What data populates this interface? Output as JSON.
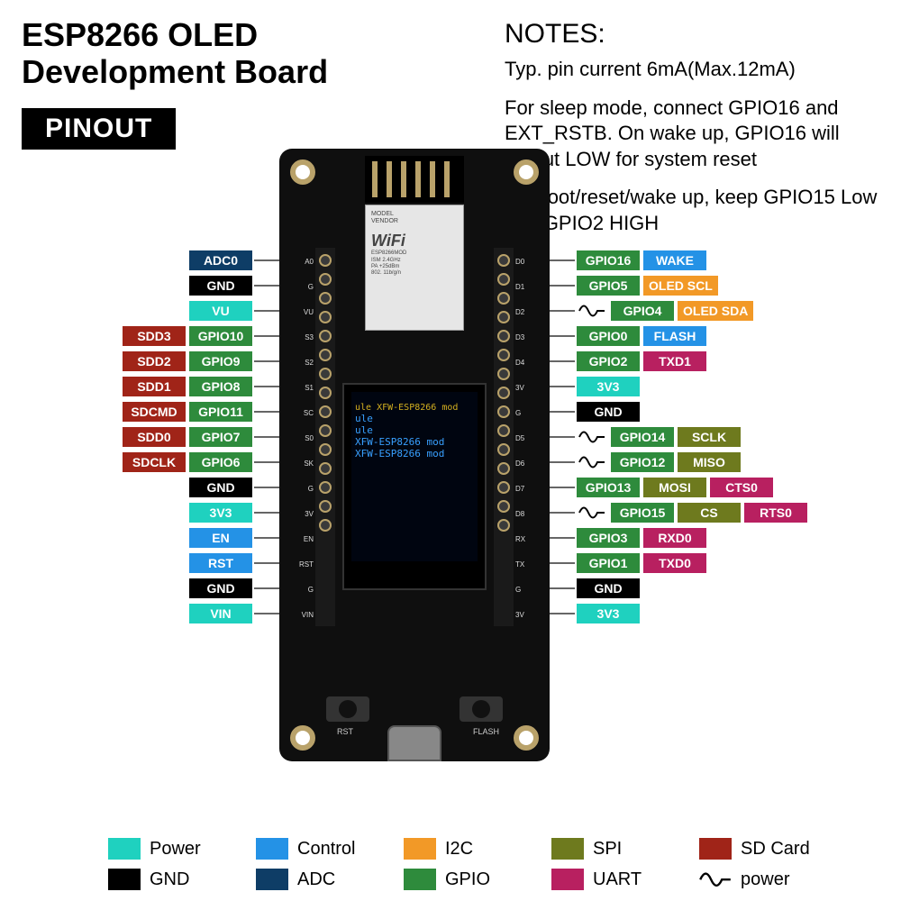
{
  "title_line1": "ESP8266 OLED",
  "title_line2": "Development Board",
  "pinout_badge": "PINOUT",
  "notes": {
    "heading": "NOTES:",
    "lines": [
      "Typ. pin current 6mA(Max.12mA)",
      "For sleep mode, connect GPIO16 and EXT_RSTB. On wake up, GPIO16 will output LOW for system reset",
      "On boot/reset/wake up, keep GPIO15 Low and GPIO2 HIGH"
    ]
  },
  "colors": {
    "power": "#1fd1bf",
    "gnd": "#000000",
    "control": "#2492e6",
    "adc": "#0e3d66",
    "i2c": "#f29927",
    "gpio": "#2e8b3c",
    "spi": "#6e7a1e",
    "uart": "#b82060",
    "sdcard": "#a02418"
  },
  "legend": [
    {
      "label": "Power",
      "color": "power"
    },
    {
      "label": "Control",
      "color": "control"
    },
    {
      "label": "I2C",
      "color": "i2c"
    },
    {
      "label": "SPI",
      "color": "spi"
    },
    {
      "label": "SD Card",
      "color": "sdcard"
    },
    {
      "label": "GND",
      "color": "gnd"
    },
    {
      "label": "ADC",
      "color": "adc"
    },
    {
      "label": "GPIO",
      "color": "gpio"
    },
    {
      "label": "UART",
      "color": "uart"
    },
    {
      "label": "power",
      "pwm": true
    }
  ],
  "silkscreen": {
    "left": [
      "A0",
      "G",
      "VU",
      "S3",
      "S2",
      "S1",
      "SC",
      "S0",
      "SK",
      "G",
      "3V",
      "EN",
      "RST",
      "G",
      "VIN"
    ],
    "right": [
      "D0",
      "D1",
      "D2",
      "D3",
      "D4",
      "3V",
      "G",
      "D5",
      "D6",
      "D7",
      "D8",
      "RX",
      "TX",
      "G",
      "3V"
    ]
  },
  "left_pins": [
    [
      {
        "t": "ADC0",
        "c": "adc"
      }
    ],
    [
      {
        "t": "GND",
        "c": "gnd"
      }
    ],
    [
      {
        "t": "VU",
        "c": "power"
      }
    ],
    [
      {
        "t": "SDD3",
        "c": "sdcard"
      },
      {
        "t": "GPIO10",
        "c": "gpio"
      }
    ],
    [
      {
        "t": "SDD2",
        "c": "sdcard"
      },
      {
        "t": "GPIO9",
        "c": "gpio"
      }
    ],
    [
      {
        "t": "SDD1",
        "c": "sdcard"
      },
      {
        "t": "GPIO8",
        "c": "gpio"
      }
    ],
    [
      {
        "t": "SDCMD",
        "c": "sdcard"
      },
      {
        "t": "GPIO11",
        "c": "gpio"
      }
    ],
    [
      {
        "t": "SDD0",
        "c": "sdcard"
      },
      {
        "t": "GPIO7",
        "c": "gpio"
      }
    ],
    [
      {
        "t": "SDCLK",
        "c": "sdcard"
      },
      {
        "t": "GPIO6",
        "c": "gpio"
      }
    ],
    [
      {
        "t": "GND",
        "c": "gnd"
      }
    ],
    [
      {
        "t": "3V3",
        "c": "power"
      }
    ],
    [
      {
        "t": "EN",
        "c": "control"
      }
    ],
    [
      {
        "t": "RST",
        "c": "control"
      }
    ],
    [
      {
        "t": "GND",
        "c": "gnd"
      }
    ],
    [
      {
        "t": "VIN",
        "c": "power"
      }
    ]
  ],
  "right_pins": [
    [
      {
        "t": "GPIO16",
        "c": "gpio"
      },
      {
        "t": "WAKE",
        "c": "control"
      }
    ],
    [
      {
        "t": "GPIO5",
        "c": "gpio"
      },
      {
        "t": "OLED SCL",
        "c": "i2c"
      }
    ],
    [
      {
        "pwm": true
      },
      {
        "t": "GPIO4",
        "c": "gpio"
      },
      {
        "t": "OLED SDA",
        "c": "i2c"
      }
    ],
    [
      {
        "t": "GPIO0",
        "c": "gpio"
      },
      {
        "t": "FLASH",
        "c": "control"
      }
    ],
    [
      {
        "t": "GPIO2",
        "c": "gpio"
      },
      {
        "t": "TXD1",
        "c": "uart"
      }
    ],
    [
      {
        "t": "3V3",
        "c": "power"
      }
    ],
    [
      {
        "t": "GND",
        "c": "gnd"
      }
    ],
    [
      {
        "pwm": true
      },
      {
        "t": "GPIO14",
        "c": "gpio"
      },
      {
        "t": "SCLK",
        "c": "spi"
      }
    ],
    [
      {
        "pwm": true
      },
      {
        "t": "GPIO12",
        "c": "gpio"
      },
      {
        "t": "MISO",
        "c": "spi"
      }
    ],
    [
      {
        "t": "GPIO13",
        "c": "gpio"
      },
      {
        "t": "MOSI",
        "c": "spi"
      },
      {
        "t": "CTS0",
        "c": "uart"
      }
    ],
    [
      {
        "pwm": true
      },
      {
        "t": "GPIO15",
        "c": "gpio"
      },
      {
        "t": "CS",
        "c": "spi"
      },
      {
        "t": "RTS0",
        "c": "uart"
      }
    ],
    [
      {
        "t": "GPIO3",
        "c": "gpio"
      },
      {
        "t": "RXD0",
        "c": "uart"
      }
    ],
    [
      {
        "t": "GPIO1",
        "c": "gpio"
      },
      {
        "t": "TXD0",
        "c": "uart"
      }
    ],
    [
      {
        "t": "GND",
        "c": "gnd"
      }
    ],
    [
      {
        "t": "3V3",
        "c": "power"
      }
    ]
  ],
  "board": {
    "shield": {
      "l1": "MODEL",
      "l2": "VENDOR",
      "wifi": "WiFi",
      "l3": "ESP8266MOD",
      "l4": "ISM 2.4GHz",
      "l5": "PA +25dBm",
      "l6": "802. 11b/g/n"
    },
    "oled_lines": [
      "ule  XFW-ESP8266 mod",
      "ule",
      "ule",
      "",
      "XFW-ESP8266 mod",
      "XFW-ESP8266 mod"
    ],
    "btn_left": "RST",
    "btn_right": "FLASH"
  },
  "layout": {
    "pin_row_height": 28,
    "tag_font_size": 14
  }
}
